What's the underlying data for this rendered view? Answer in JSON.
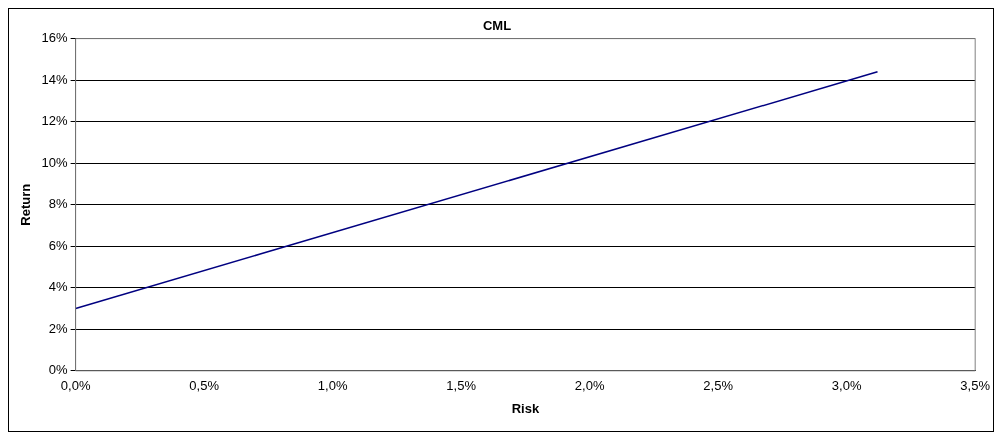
{
  "chart_data": {
    "type": "line",
    "title": "CML",
    "xlabel": "Risk",
    "ylabel": "Return",
    "x": [
      0,
      3.12
    ],
    "series": [
      {
        "color": "#000080",
        "values": [
          3.0,
          14.4
        ]
      }
    ],
    "xlim": [
      0,
      3.5
    ],
    "xticks": [
      {
        "value": 0,
        "label": "0,0%"
      },
      {
        "value": 0.5,
        "label": "0,5%"
      },
      {
        "value": 1,
        "label": "1,0%"
      },
      {
        "value": 1.5,
        "label": "1,5%"
      },
      {
        "value": 2,
        "label": "2,0%"
      },
      {
        "value": 2.5,
        "label": "2,5%"
      },
      {
        "value": 3,
        "label": "3,0%"
      },
      {
        "value": 3.5,
        "label": "3,5%"
      }
    ],
    "ylim": [
      0,
      16
    ],
    "yticks": [
      {
        "value": 0,
        "label": "0%"
      },
      {
        "value": 2,
        "label": "2%"
      },
      {
        "value": 4,
        "label": "4%"
      },
      {
        "value": 6,
        "label": "6%"
      },
      {
        "value": 8,
        "label": "8%"
      },
      {
        "value": 10,
        "label": "10%"
      },
      {
        "value": 12,
        "label": "12%"
      },
      {
        "value": 14,
        "label": "14%"
      },
      {
        "value": 16,
        "label": "16%"
      }
    ],
    "grid": "y",
    "legend": false,
    "marker": "none",
    "line_style": "solid"
  }
}
